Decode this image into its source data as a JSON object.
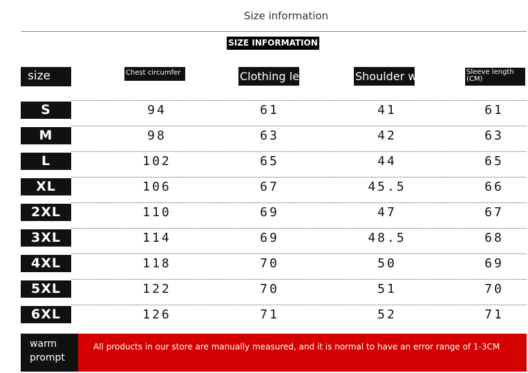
{
  "header": {
    "title": "Size information",
    "badge": "SIZE INFORMATION"
  },
  "table": {
    "columns": [
      "size",
      "Chest circumfer",
      "Clothing len",
      "Shoulder wi",
      "Sleeve length (CM)"
    ],
    "rows": [
      [
        "S",
        "94",
        "61",
        "41",
        "61"
      ],
      [
        "M",
        "98",
        "63",
        "42",
        "63"
      ],
      [
        "L",
        "102",
        "65",
        "44",
        "65"
      ],
      [
        "XL",
        "106",
        "67",
        "45.5",
        "66"
      ],
      [
        "2XL",
        "110",
        "69",
        "47",
        "67"
      ],
      [
        "3XL",
        "114",
        "69",
        "48.5",
        "68"
      ],
      [
        "4XL",
        "118",
        "70",
        "50",
        "69"
      ],
      [
        "5XL",
        "122",
        "70",
        "51",
        "70"
      ],
      [
        "6XL",
        "126",
        "71",
        "52",
        "71"
      ]
    ]
  },
  "notice": {
    "label": "warm prompt",
    "text": "All products in our store are manually measured, and it is normal to have an error range of 1-3CM"
  }
}
